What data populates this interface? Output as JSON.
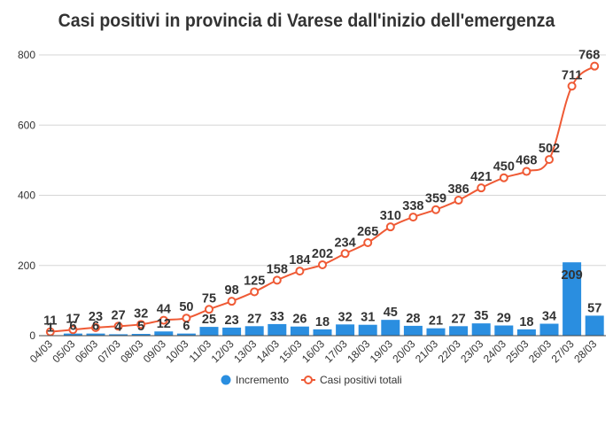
{
  "chart_data": {
    "type": "bar+line",
    "title": "Casi positivi in provincia di Varese dall'inizio dell'emergenza",
    "categories": [
      "04/03",
      "05/03",
      "06/03",
      "07/03",
      "08/03",
      "09/03",
      "10/03",
      "11/03",
      "12/03",
      "13/03",
      "14/03",
      "15/03",
      "16/03",
      "17/03",
      "18/03",
      "19/03",
      "20/03",
      "21/03",
      "22/03",
      "23/03",
      "24/03",
      "25/03",
      "26/03",
      "27/03",
      "28/03"
    ],
    "series": [
      {
        "name": "Incremento",
        "type": "bar",
        "color": "#2a8ee0",
        "values": [
          1,
          6,
          6,
          4,
          5,
          12,
          6,
          25,
          23,
          27,
          33,
          26,
          18,
          32,
          31,
          45,
          28,
          21,
          27,
          35,
          29,
          18,
          34,
          209,
          57
        ]
      },
      {
        "name": "Casi positivi totali",
        "type": "line",
        "color": "#ef5a35",
        "values": [
          11,
          17,
          23,
          27,
          32,
          44,
          50,
          75,
          98,
          125,
          158,
          184,
          202,
          234,
          265,
          310,
          338,
          359,
          386,
          421,
          450,
          468,
          502,
          711,
          768
        ]
      }
    ],
    "yticks": [
      0,
      200,
      400,
      600,
      800
    ],
    "ylim": [
      0,
      800
    ],
    "grid": true,
    "legend_position": "bottom"
  }
}
